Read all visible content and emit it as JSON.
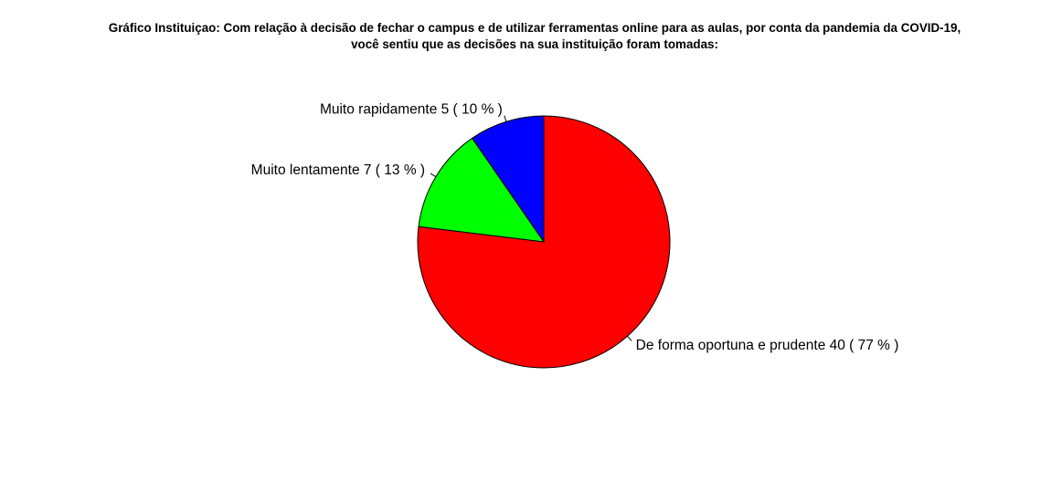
{
  "chart_data": {
    "type": "pie",
    "title_lines": [
      "Gráfico Instituiçao:  Com relação à decisão de fechar o campus e de utilizar ferramentas online para as aulas, por conta da pandemia da COVID-19,",
      "você sentiu que as decisões na sua instituição foram tomadas:"
    ],
    "slices": [
      {
        "label": "Muito rapidamente",
        "value": 5,
        "display": "Muito rapidamente   5 ( 10 % )",
        "color": "#0000FF"
      },
      {
        "label": "Muito lentamente",
        "value": 7,
        "display": "Muito lentamente   7 ( 13 % )",
        "color": "#00FF00"
      },
      {
        "label": "De forma oportuna e prudente",
        "value": 40,
        "display": "De forma oportuna e prudente   40 ( 77 % )",
        "color": "#FF0000"
      }
    ],
    "start": "12 o'clock",
    "direction": "counterclockwise",
    "legend": "none"
  }
}
